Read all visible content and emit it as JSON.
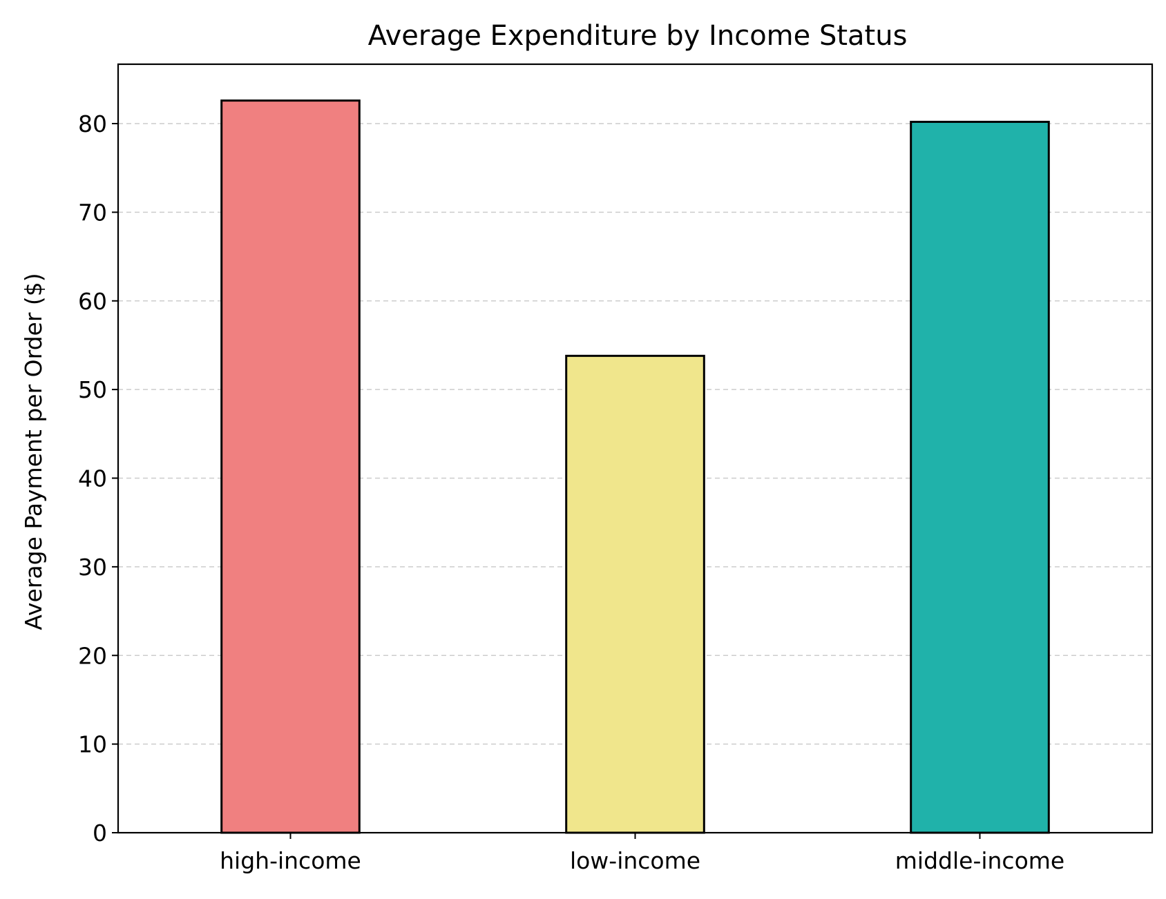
{
  "chart_data": {
    "type": "bar",
    "title": "Average Expenditure by Income Status",
    "xlabel": "",
    "ylabel": "Average Payment per Order ($)",
    "categories": [
      "high-income",
      "low-income",
      "middle-income"
    ],
    "values": [
      82.6,
      53.8,
      80.2
    ],
    "colors": [
      "#f08080",
      "#f0e68c",
      "#20b2aa"
    ],
    "edge_color": "#000000",
    "ylim": [
      0,
      86.7
    ],
    "yticks": [
      0,
      10,
      20,
      30,
      40,
      50,
      60,
      70,
      80
    ],
    "grid": {
      "axis": "y",
      "style": "dashed",
      "color": "#cccccc"
    }
  }
}
